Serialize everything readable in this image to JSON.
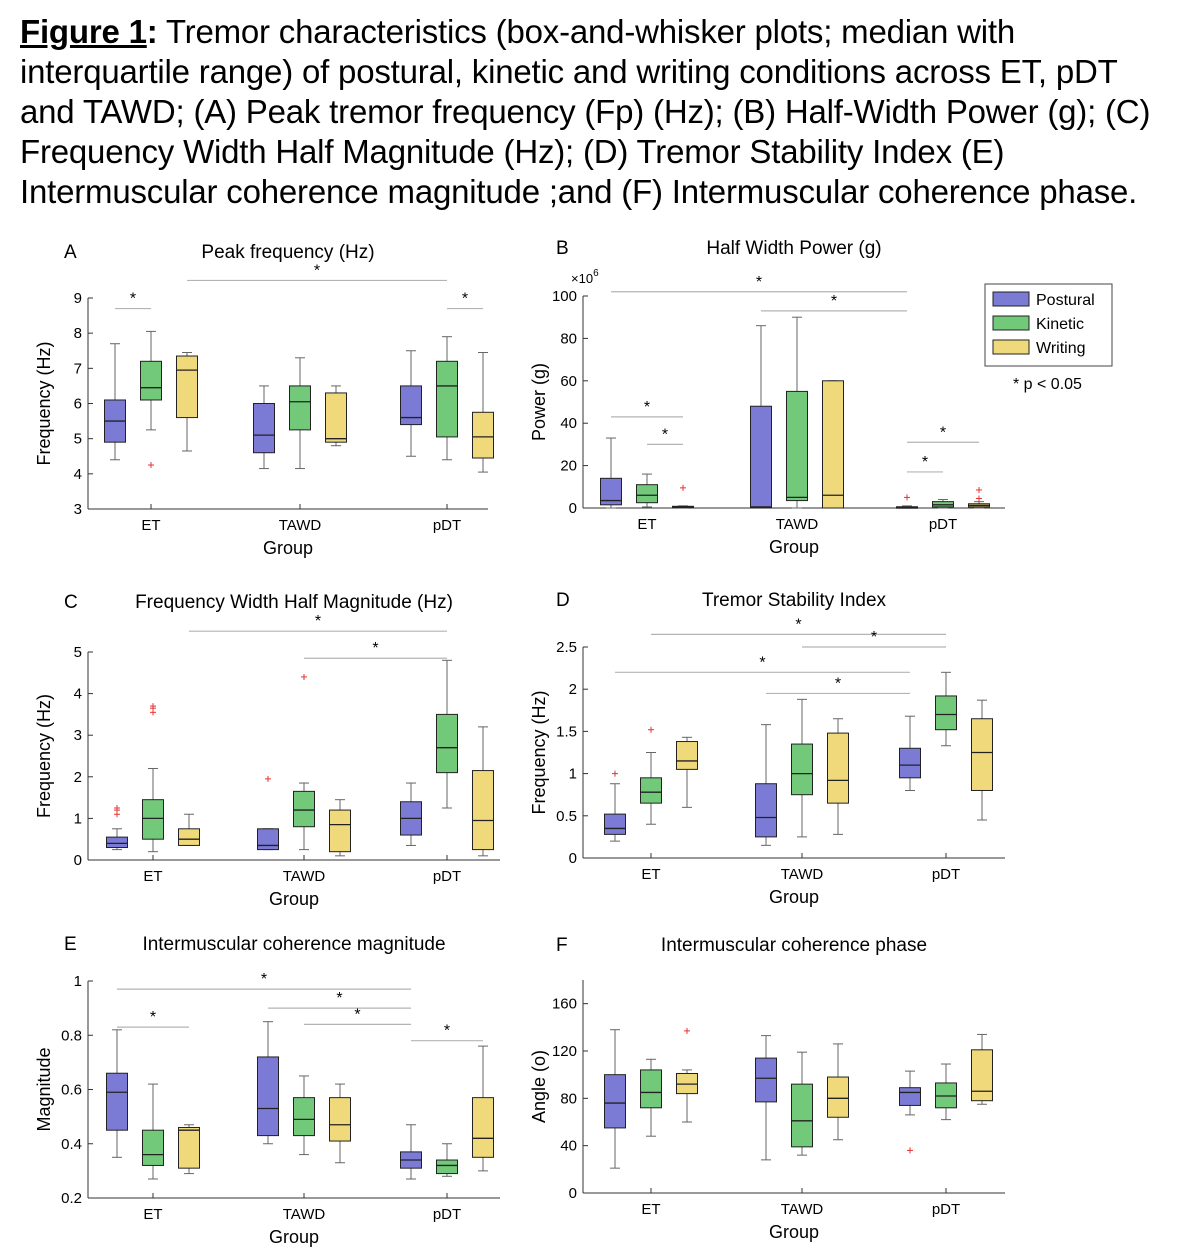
{
  "caption": {
    "label": "Figure 1",
    "colon": ":",
    "text": " Tremor characteristics (box-and-whisker plots; median with interquartile range) of postural, kinetic and writing conditions across ET, pDT and TAWD; (A) Peak tremor frequency (Fp) (Hz); (B) Half-Width Power (g); (C) Frequency Width Half Magnitude (Hz); (D) Tremor Stability Index (E) Intermuscular coherence magnitude ;and (F) Intermuscular coherence phase."
  },
  "colors": {
    "Postural": "#7b7bd6",
    "Kinetic": "#72c97a",
    "Writing": "#f0d97a",
    "outlier": "#e83030",
    "sigline": "#b4b4b4"
  },
  "legend": {
    "items": [
      "Postural",
      "Kinetic",
      "Writing"
    ],
    "note": "* p < 0.05"
  },
  "chart_data": [
    {
      "letter": "A",
      "type": "box",
      "title": "Peak frequency (Hz)",
      "xlabel": "Group",
      "ylabel": "Frequency (Hz)",
      "categories": [
        "ET",
        "TAWD",
        "pDT"
      ],
      "series_names": [
        "Postural",
        "Kinetic",
        "Writing"
      ],
      "ylim": [
        3,
        9
      ],
      "yticks": [
        "3",
        "4",
        "5",
        "6",
        "7",
        "8",
        "9"
      ],
      "exponent": "",
      "boxes": [
        [
          [
            4.4,
            4.9,
            5.5,
            6.1,
            7.7
          ],
          [
            5.25,
            6.1,
            6.45,
            7.2,
            8.05
          ],
          [
            4.65,
            5.6,
            6.95,
            7.35,
            7.45
          ]
        ],
        [
          [
            4.15,
            4.6,
            5.1,
            6.0,
            6.5
          ],
          [
            4.15,
            5.25,
            6.05,
            6.5,
            7.3
          ],
          [
            4.8,
            4.9,
            5.0,
            6.3,
            6.5
          ]
        ],
        [
          [
            4.5,
            5.4,
            5.6,
            6.5,
            7.5
          ],
          [
            4.4,
            5.05,
            6.5,
            7.2,
            7.9
          ],
          [
            4.05,
            4.45,
            5.05,
            5.75,
            7.45
          ]
        ]
      ],
      "outliers": [
        [
          0,
          1,
          4.25
        ]
      ],
      "sig": [
        [
          "ET",
          "Postural",
          "ET",
          "Kinetic",
          8.7
        ],
        [
          "ET",
          "Writing",
          "pDT",
          "Kinetic",
          9.5
        ],
        [
          "pDT",
          "Kinetic",
          "pDT",
          "Writing",
          8.7
        ]
      ],
      "legend": true
    },
    {
      "letter": "B",
      "type": "box",
      "title": "Half Width Power (g)",
      "xlabel": "Group",
      "ylabel": "Power (g)",
      "categories": [
        "ET",
        "TAWD",
        "pDT"
      ],
      "series_names": [
        "Postural",
        "Kinetic",
        "Writing"
      ],
      "ylim": [
        0,
        100
      ],
      "yticks": [
        "0",
        "20",
        "40",
        "60",
        "80",
        "100"
      ],
      "exponent": "6",
      "boxes": [
        [
          [
            0,
            1.5,
            3.5,
            14,
            33
          ],
          [
            0.5,
            2.5,
            6,
            11,
            16
          ],
          [
            0,
            0.2,
            0.5,
            0.8,
            1
          ]
        ],
        [
          [
            0,
            0,
            0.5,
            48,
            86
          ],
          [
            0,
            3.5,
            5,
            55,
            90
          ],
          [
            0,
            0,
            6,
            60,
            60
          ]
        ],
        [
          [
            0,
            0.1,
            0.3,
            0.6,
            1
          ],
          [
            0,
            0.5,
            1.5,
            3,
            4
          ],
          [
            0,
            0.5,
            1.2,
            2,
            3
          ]
        ]
      ],
      "outliers": [
        [
          0,
          2,
          9.5
        ],
        [
          2,
          0,
          5
        ],
        [
          2,
          2,
          8.5
        ],
        [
          2,
          2,
          4.5
        ]
      ],
      "sig": [
        [
          "ET",
          "Postural",
          "pDT",
          "Postural",
          102
        ],
        [
          "TAWD",
          "Postural",
          "pDT",
          "Postural",
          93
        ],
        [
          "ET",
          "Postural",
          "ET",
          "Writing",
          43
        ],
        [
          "ET",
          "Kinetic",
          "ET",
          "Writing",
          30
        ],
        [
          "pDT",
          "Postural",
          "pDT",
          "Writing",
          31
        ],
        [
          "pDT",
          "Postural",
          "pDT",
          "Kinetic",
          17
        ]
      ],
      "legend": false
    },
    {
      "letter": "C",
      "type": "box",
      "title": "Frequency Width Half Magnitude (Hz)",
      "xlabel": "Group",
      "ylabel": "Frequency (Hz)",
      "categories": [
        "ET",
        "TAWD",
        "pDT"
      ],
      "series_names": [
        "Postural",
        "Kinetic",
        "Writing"
      ],
      "ylim": [
        0,
        5
      ],
      "yticks": [
        "0",
        "1",
        "2",
        "3",
        "4",
        "5"
      ],
      "exponent": "",
      "boxes": [
        [
          [
            0.25,
            0.3,
            0.4,
            0.55,
            0.75
          ],
          [
            0.2,
            0.5,
            1.0,
            1.45,
            2.2
          ],
          [
            0.35,
            0.35,
            0.5,
            0.75,
            1.1
          ]
        ],
        [
          [
            0.25,
            0.25,
            0.35,
            0.75,
            0.75
          ],
          [
            0.25,
            0.8,
            1.2,
            1.65,
            1.85
          ],
          [
            0.1,
            0.2,
            0.85,
            1.2,
            1.45
          ]
        ],
        [
          [
            0.35,
            0.6,
            1.0,
            1.4,
            1.85
          ],
          [
            1.25,
            2.1,
            2.7,
            3.5,
            4.8
          ],
          [
            0.1,
            0.25,
            0.95,
            2.15,
            3.2
          ]
        ]
      ],
      "outliers": [
        [
          0,
          0,
          1.1
        ],
        [
          0,
          0,
          1.2
        ],
        [
          0,
          0,
          1.25
        ],
        [
          0,
          1,
          3.55
        ],
        [
          0,
          1,
          3.65
        ],
        [
          0,
          1,
          3.7
        ],
        [
          1,
          0,
          1.95
        ],
        [
          1,
          1,
          4.4
        ]
      ],
      "sig": [
        [
          "ET",
          "Writing",
          "pDT",
          "Kinetic",
          5.5
        ],
        [
          "TAWD",
          "Kinetic",
          "pDT",
          "Kinetic",
          4.85
        ]
      ],
      "legend": false
    },
    {
      "letter": "D",
      "type": "box",
      "title": "Tremor Stability Index",
      "xlabel": "Group",
      "ylabel": "Frequency (Hz)",
      "categories": [
        "ET",
        "TAWD",
        "pDT"
      ],
      "series_names": [
        "Postural",
        "Kinetic",
        "Writing"
      ],
      "ylim": [
        0,
        2.5
      ],
      "yticks": [
        "0",
        "0.5",
        "1",
        "1.5",
        "2",
        "2.5"
      ],
      "exponent": "",
      "boxes": [
        [
          [
            0.2,
            0.28,
            0.35,
            0.52,
            0.88
          ],
          [
            0.4,
            0.65,
            0.78,
            0.95,
            1.25
          ],
          [
            0.6,
            1.05,
            1.15,
            1.38,
            1.43
          ]
        ],
        [
          [
            0.15,
            0.25,
            0.48,
            0.88,
            1.58
          ],
          [
            0.25,
            0.75,
            1.0,
            1.35,
            1.88
          ],
          [
            0.28,
            0.65,
            0.92,
            1.48,
            1.65
          ]
        ],
        [
          [
            0.8,
            0.95,
            1.1,
            1.3,
            1.68
          ],
          [
            1.33,
            1.52,
            1.7,
            1.92,
            2.2
          ],
          [
            0.45,
            0.8,
            1.25,
            1.65,
            1.87
          ]
        ]
      ],
      "outliers": [
        [
          0,
          0,
          1.0
        ],
        [
          0,
          1,
          1.52
        ]
      ],
      "sig": [
        [
          "ET",
          "Kinetic",
          "pDT",
          "Kinetic",
          2.65
        ],
        [
          "TAWD",
          "Kinetic",
          "pDT",
          "Kinetic",
          2.5
        ],
        [
          "ET",
          "Postural",
          "pDT",
          "Postural",
          2.2
        ],
        [
          "TAWD",
          "Postural",
          "pDT",
          "Postural",
          1.95
        ]
      ],
      "legend": false
    },
    {
      "letter": "E",
      "type": "box",
      "title": "Intermuscular coherence magnitude",
      "xlabel": "Group",
      "ylabel": "Magnitude",
      "categories": [
        "ET",
        "TAWD",
        "pDT"
      ],
      "series_names": [
        "Postural",
        "Kinetic",
        "Writing"
      ],
      "ylim": [
        0.2,
        1
      ],
      "yticks": [
        "0.2",
        "0.4",
        "0.6",
        "0.8",
        "1"
      ],
      "exponent": "",
      "boxes": [
        [
          [
            0.35,
            0.45,
            0.59,
            0.66,
            0.82
          ],
          [
            0.27,
            0.32,
            0.36,
            0.45,
            0.62
          ],
          [
            0.29,
            0.31,
            0.45,
            0.46,
            0.47
          ]
        ],
        [
          [
            0.4,
            0.43,
            0.53,
            0.72,
            0.85
          ],
          [
            0.36,
            0.43,
            0.49,
            0.57,
            0.65
          ],
          [
            0.33,
            0.41,
            0.47,
            0.57,
            0.62
          ]
        ],
        [
          [
            0.27,
            0.31,
            0.34,
            0.37,
            0.47
          ],
          [
            0.28,
            0.29,
            0.32,
            0.34,
            0.4
          ],
          [
            0.3,
            0.35,
            0.42,
            0.57,
            0.76
          ]
        ]
      ],
      "outliers": [],
      "sig": [
        [
          "ET",
          "Postural",
          "pDT",
          "Postural",
          0.97
        ],
        [
          "TAWD",
          "Postural",
          "pDT",
          "Postural",
          0.9
        ],
        [
          "TAWD",
          "Kinetic",
          "pDT",
          "Postural",
          0.84
        ],
        [
          "ET",
          "Postural",
          "ET",
          "Writing",
          0.83
        ],
        [
          "pDT",
          "Postural",
          "pDT",
          "Writing",
          0.78
        ]
      ],
      "legend": false
    },
    {
      "letter": "F",
      "type": "box",
      "title": "Intermuscular coherence phase",
      "xlabel": "Group",
      "ylabel": "Angle (o)",
      "categories": [
        "ET",
        "TAWD",
        "pDT"
      ],
      "series_names": [
        "Postural",
        "Kinetic",
        "Writing"
      ],
      "ylim": [
        0,
        180
      ],
      "yticks": [
        "0",
        "40",
        "80",
        "120",
        "160"
      ],
      "exponent": "",
      "boxes": [
        [
          [
            21,
            55,
            76,
            100,
            138
          ],
          [
            48,
            72,
            85,
            104,
            113
          ],
          [
            60,
            84,
            92,
            101,
            104
          ]
        ],
        [
          [
            28,
            77,
            97,
            114,
            133
          ],
          [
            32,
            39,
            61,
            92,
            119
          ],
          [
            45,
            64,
            80,
            98,
            126
          ]
        ],
        [
          [
            66,
            74,
            85,
            89,
            103
          ],
          [
            62,
            72,
            82,
            93,
            109
          ],
          [
            75,
            78,
            86,
            121,
            134
          ]
        ]
      ],
      "outliers": [
        [
          0,
          2,
          137
        ],
        [
          2,
          0,
          36
        ]
      ],
      "sig": [],
      "legend": false
    }
  ]
}
